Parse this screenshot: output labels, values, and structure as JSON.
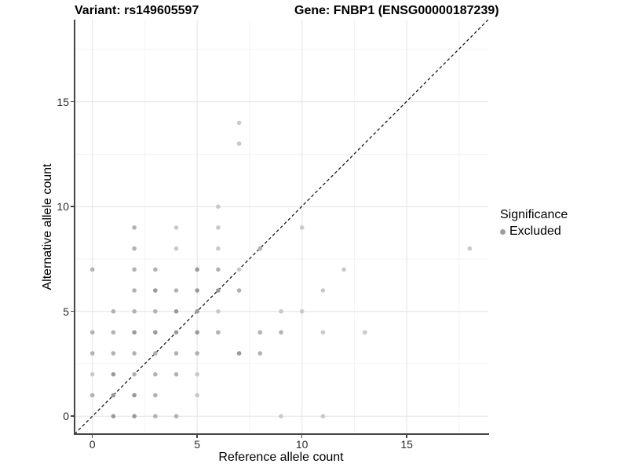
{
  "titles": {
    "left": "Variant: rs149605597",
    "right": "Gene: FNBP1 (ENSG00000187239)"
  },
  "legend": {
    "title": "Significance",
    "items": [
      {
        "label": "Excluded",
        "color": "#9e9e9e"
      }
    ]
  },
  "colors": {
    "grid_major": "#e3e3e3",
    "grid_minor": "#f1f1f1",
    "axis_line": "#454545",
    "identity_line": "#1a1a1a",
    "point_shades": {
      "1": "#c9c9c9",
      "2": "#b2b2b2",
      "3": "#9a9a9a"
    }
  },
  "chart_data": {
    "type": "scatter",
    "title": "Variant: rs149605597 | Gene: FNBP1 (ENSG00000187239)",
    "xlabel": "Reference allele count",
    "ylabel": "Alternative allele count",
    "xlim": [
      -0.85,
      18.85
    ],
    "ylim": [
      -0.85,
      18.85
    ],
    "x_ticks": [
      0,
      5,
      10,
      15
    ],
    "y_ticks": [
      0,
      5,
      10,
      15
    ],
    "x_minor_ticks": [
      2.5,
      7.5,
      12.5,
      17.5
    ],
    "y_minor_ticks": [
      2.5,
      7.5,
      12.5,
      17.5
    ],
    "grid": true,
    "legend_position": "right",
    "identity_line": {
      "type": "dashed",
      "slope": 1,
      "intercept": 0
    },
    "series": [
      {
        "name": "Excluded",
        "note": "points are [reference_count, alternative_count, overplot_shade 1=light 2=medium 3=dark]",
        "points": [
          [
            1,
            0,
            3
          ],
          [
            2,
            0,
            3
          ],
          [
            3,
            0,
            2
          ],
          [
            4,
            0,
            2
          ],
          [
            9,
            0,
            1
          ],
          [
            11,
            0,
            1
          ],
          [
            0,
            1,
            2
          ],
          [
            1,
            1,
            3
          ],
          [
            2,
            1,
            3
          ],
          [
            3,
            1,
            2
          ],
          [
            5,
            1,
            1
          ],
          [
            0,
            2,
            1
          ],
          [
            1,
            2,
            3
          ],
          [
            2,
            2,
            2
          ],
          [
            3,
            2,
            2
          ],
          [
            4,
            2,
            2
          ],
          [
            5,
            2,
            1
          ],
          [
            0,
            3,
            2
          ],
          [
            1,
            3,
            2
          ],
          [
            2,
            3,
            2
          ],
          [
            3,
            3,
            2
          ],
          [
            4,
            3,
            2
          ],
          [
            5,
            3,
            2
          ],
          [
            7,
            3,
            3
          ],
          [
            8,
            3,
            2
          ],
          [
            0,
            4,
            2
          ],
          [
            1,
            4,
            2
          ],
          [
            2,
            4,
            3
          ],
          [
            3,
            4,
            3
          ],
          [
            4,
            4,
            3
          ],
          [
            5,
            4,
            3
          ],
          [
            6,
            4,
            2
          ],
          [
            8,
            4,
            2
          ],
          [
            9,
            4,
            2
          ],
          [
            11,
            4,
            1
          ],
          [
            13,
            4,
            1
          ],
          [
            1,
            5,
            2
          ],
          [
            2,
            5,
            2
          ],
          [
            3,
            5,
            2
          ],
          [
            4,
            5,
            3
          ],
          [
            5,
            5,
            3
          ],
          [
            6,
            5,
            1
          ],
          [
            9,
            5,
            1
          ],
          [
            10,
            5,
            1
          ],
          [
            2,
            6,
            2
          ],
          [
            3,
            6,
            3
          ],
          [
            4,
            6,
            2
          ],
          [
            5,
            6,
            3
          ],
          [
            6,
            6,
            3
          ],
          [
            7,
            6,
            2
          ],
          [
            11,
            6,
            1
          ],
          [
            0,
            7,
            2
          ],
          [
            2,
            7,
            2
          ],
          [
            3,
            7,
            2
          ],
          [
            5,
            7,
            3
          ],
          [
            6,
            7,
            2
          ],
          [
            7,
            7,
            1
          ],
          [
            12,
            7,
            1
          ],
          [
            2,
            8,
            2
          ],
          [
            4,
            8,
            1
          ],
          [
            6,
            8,
            1
          ],
          [
            8,
            8,
            2
          ],
          [
            18,
            8,
            1
          ],
          [
            2,
            9,
            2
          ],
          [
            4,
            9,
            1
          ],
          [
            6,
            9,
            1
          ],
          [
            10,
            9,
            1
          ],
          [
            6,
            10,
            1
          ],
          [
            7,
            13,
            1
          ],
          [
            7,
            14,
            1
          ]
        ]
      }
    ]
  }
}
